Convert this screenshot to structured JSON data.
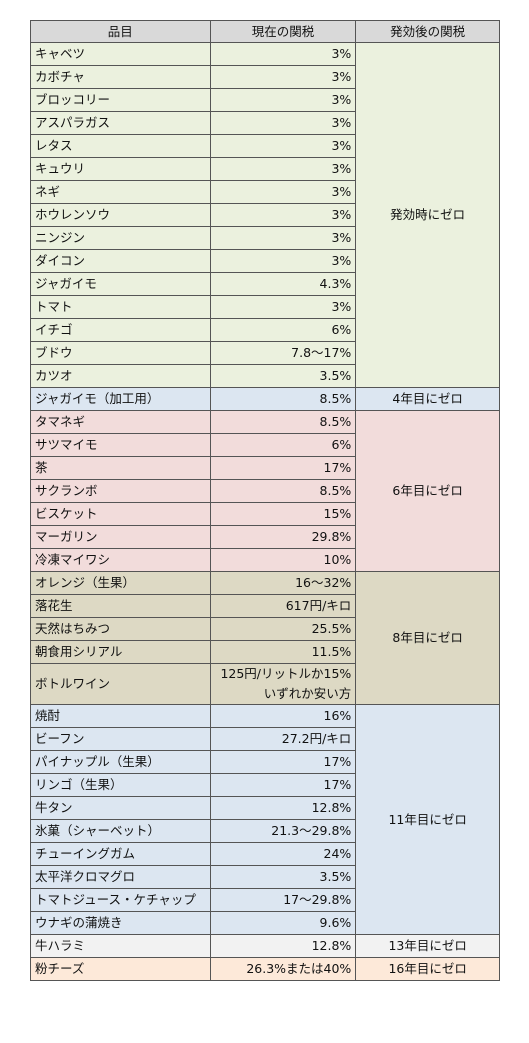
{
  "table": {
    "header": [
      "品目",
      "現在の関税",
      "発効後の関税"
    ],
    "groups": [
      {
        "label": "発効時にゼロ",
        "color": "#ebf1de",
        "rows": [
          [
            "キャベツ",
            "3%"
          ],
          [
            "カボチャ",
            "3%"
          ],
          [
            "ブロッコリー",
            "3%"
          ],
          [
            "アスパラガス",
            "3%"
          ],
          [
            "レタス",
            "3%"
          ],
          [
            "キュウリ",
            "3%"
          ],
          [
            "ネギ",
            "3%"
          ],
          [
            "ホウレンソウ",
            "3%"
          ],
          [
            "ニンジン",
            "3%"
          ],
          [
            "ダイコン",
            "3%"
          ],
          [
            "ジャガイモ",
            "4.3%"
          ],
          [
            "トマト",
            "3%"
          ],
          [
            "イチゴ",
            "6%"
          ],
          [
            "ブドウ",
            "7.8～17%"
          ],
          [
            "カツオ",
            "3.5%"
          ]
        ]
      },
      {
        "label": "4年目にゼロ",
        "color": "#dce6f1",
        "rows": [
          [
            "ジャガイモ（加工用）",
            "8.5%"
          ]
        ]
      },
      {
        "label": "6年目にゼロ",
        "color": "#f2dcdb",
        "rows": [
          [
            "タマネギ",
            "8.5%"
          ],
          [
            "サツマイモ",
            "6%"
          ],
          [
            "茶",
            "17%"
          ],
          [
            "サクランボ",
            "8.5%"
          ],
          [
            "ビスケット",
            "15%"
          ],
          [
            "マーガリン",
            "29.8%"
          ],
          [
            "冷凍マイワシ",
            "10%"
          ]
        ]
      },
      {
        "label": "8年目にゼロ",
        "color": "#ddd9c4",
        "rows": [
          [
            "オレンジ（生果）",
            "16～32%"
          ],
          [
            "落花生",
            "617円/キロ"
          ],
          [
            "天然はちみつ",
            "25.5%"
          ],
          [
            "朝食用シリアル",
            "11.5%"
          ],
          [
            "ボトルワイン",
            "125円/リットルか15%\nいずれか安い方"
          ]
        ]
      },
      {
        "label": "11年目にゼロ",
        "color": "#dce6f1",
        "rows": [
          [
            "焼酎",
            "16%"
          ],
          [
            "ビーフン",
            "27.2円/キロ"
          ],
          [
            "パイナップル（生果）",
            "17%"
          ],
          [
            "リンゴ（生果）",
            "17%"
          ],
          [
            "牛タン",
            "12.8%"
          ],
          [
            "氷菓（シャーベット）",
            "21.3～29.8%"
          ],
          [
            "チューイングガム",
            "24%"
          ],
          [
            "太平洋クロマグロ",
            "3.5%"
          ],
          [
            "トマトジュース・ケチャップ",
            "17～29.8%"
          ],
          [
            "ウナギの蒲焼き",
            "9.6%"
          ]
        ]
      },
      {
        "label": "13年目にゼロ",
        "color": "#f2f2f2",
        "rows": [
          [
            "牛ハラミ",
            "12.8%"
          ]
        ]
      },
      {
        "label": "16年目にゼロ",
        "color": "#fde9d9",
        "rows": [
          [
            "粉チーズ",
            "26.3%または40%"
          ]
        ]
      }
    ]
  }
}
